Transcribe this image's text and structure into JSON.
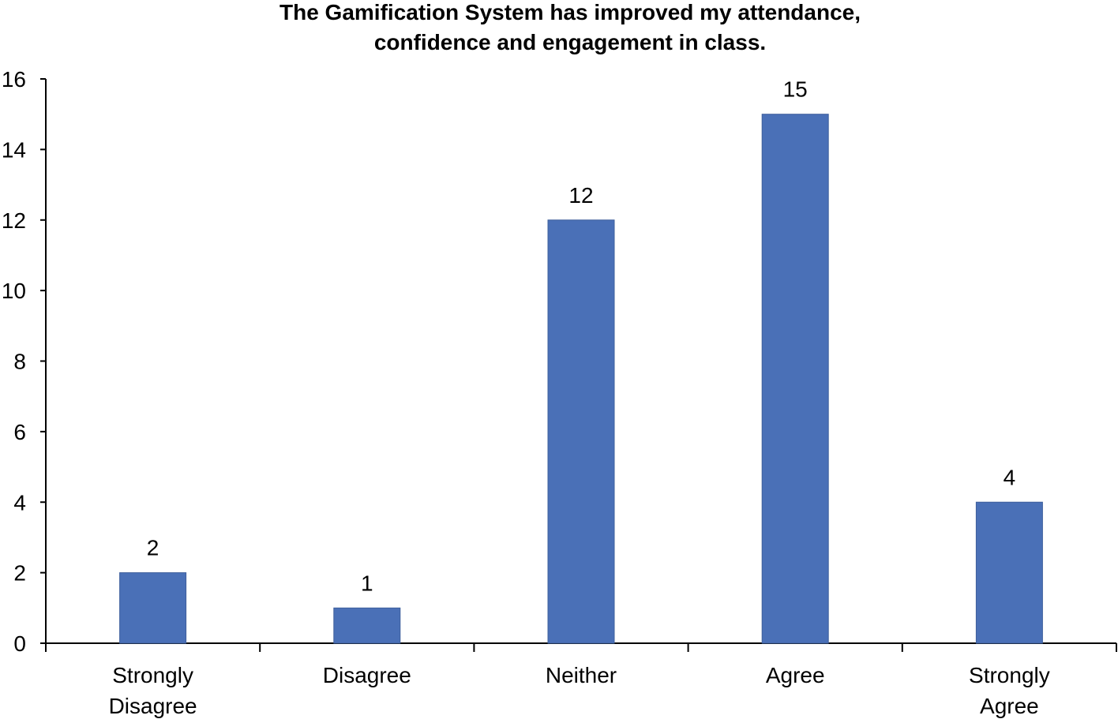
{
  "chart_data": {
    "type": "bar",
    "title_lines": [
      "The Gamification System has improved my attendance,",
      "confidence and engagement in class."
    ],
    "categories": [
      [
        "Strongly",
        "Disagree"
      ],
      [
        "Disagree"
      ],
      [
        "Neither"
      ],
      [
        "Agree"
      ],
      [
        "Strongly",
        "Agree"
      ]
    ],
    "values": [
      2,
      1,
      12,
      15,
      4
    ],
    "data_labels": [
      "2",
      "1",
      "12",
      "15",
      "4"
    ],
    "ylim": [
      0,
      16
    ],
    "yticks": [
      0,
      2,
      4,
      6,
      8,
      10,
      12,
      14,
      16
    ],
    "xlabel": "",
    "ylabel": "",
    "grid": false,
    "legend": "none",
    "bar_color": "#4A70B7"
  }
}
